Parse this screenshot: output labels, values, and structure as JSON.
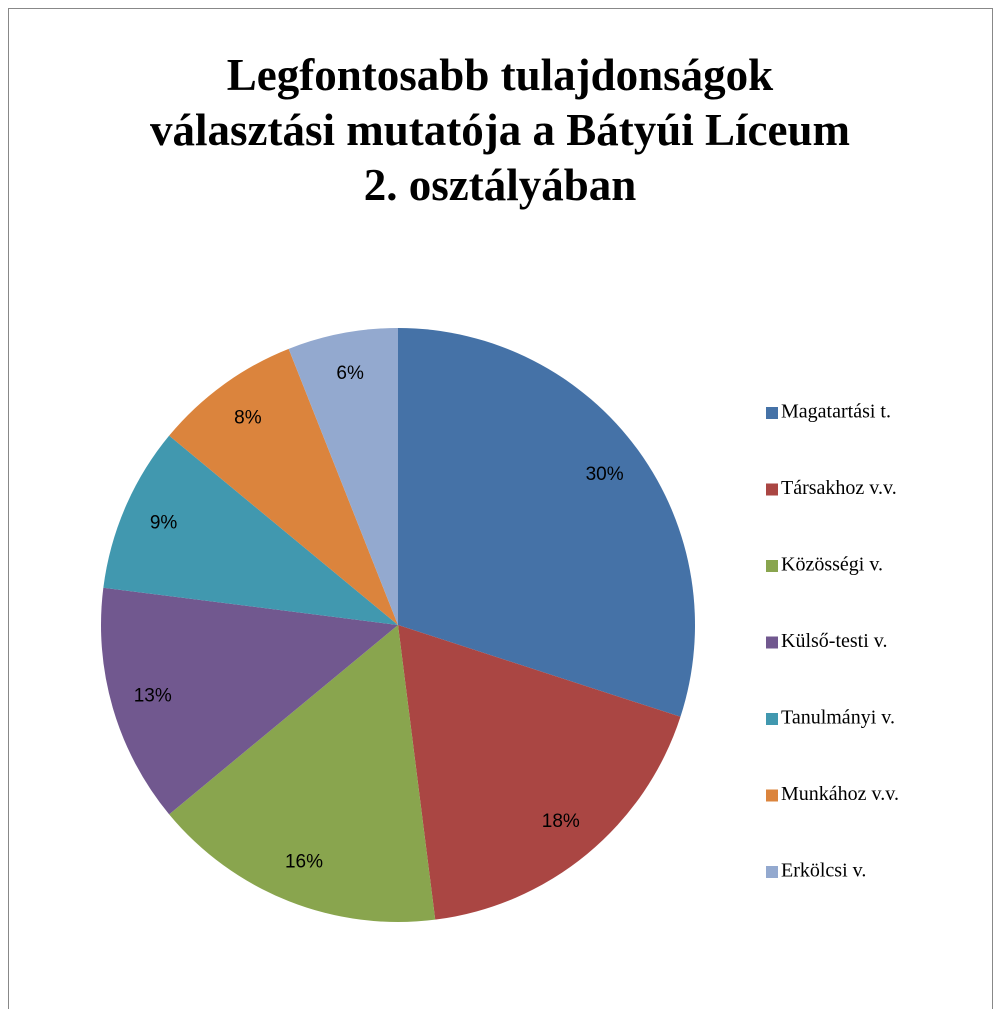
{
  "chart_data": {
    "type": "pie",
    "title": [
      "Legfontosabb tulajdonságok",
      "választási mutatója a Bátyúi Líceum",
      "2. osztályában"
    ],
    "categories": [
      "Magatartási t.",
      "Társakhoz v.v.",
      "Közösségi v.",
      "Külső-testi v.",
      "Tanulmányi v.",
      "Munkához v.v.",
      "Erkölcsi v."
    ],
    "values": [
      30,
      18,
      16,
      13,
      9,
      8,
      6
    ],
    "value_labels": [
      "30%",
      "18%",
      "16%",
      "13%",
      "9%",
      "8%",
      "6%"
    ],
    "colors": [
      "#4572a7",
      "#aa4643",
      "#89a54e",
      "#71588f",
      "#4198af",
      "#db843d",
      "#93a9cf"
    ],
    "legend": "right"
  }
}
